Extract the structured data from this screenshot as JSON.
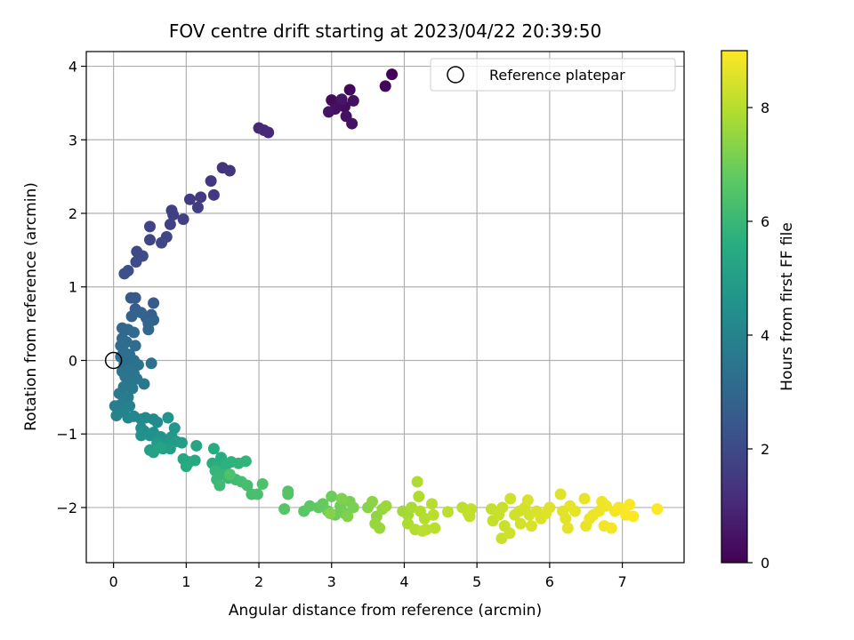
{
  "chart_data": {
    "type": "scatter",
    "title": "FOV centre drift starting at 2023/04/22 20:39:50",
    "xlabel": "Angular distance from reference (arcmin)",
    "ylabel": "Rotation from reference (arcmin)",
    "xlim": [
      -0.375,
      7.85
    ],
    "ylim": [
      -2.75,
      4.2
    ],
    "xticks": [
      0,
      1,
      2,
      3,
      4,
      5,
      6,
      7
    ],
    "yticks": [
      -2,
      -1,
      0,
      1,
      2,
      3,
      4
    ],
    "grid": true,
    "legend": {
      "placement": "top-right",
      "entries": [
        "Reference platepar"
      ]
    },
    "reference_point": {
      "x": 0,
      "y": 0,
      "label": "Reference platepar"
    },
    "colorbar": {
      "label": "Hours from first FF file",
      "min": 0,
      "max": 9,
      "ticks": [
        0,
        2,
        4,
        6,
        8
      ],
      "colormap": "viridis"
    },
    "points": [
      [
        3.83,
        3.89,
        0.05
      ],
      [
        3.74,
        3.73,
        0.12
      ],
      [
        3.25,
        3.68,
        0.18
      ],
      [
        3.0,
        3.54,
        0.22
      ],
      [
        3.1,
        3.5,
        0.26
      ],
      [
        3.18,
        3.45,
        0.3
      ],
      [
        3.3,
        3.53,
        0.34
      ],
      [
        3.05,
        3.42,
        0.38
      ],
      [
        3.2,
        3.32,
        0.42
      ],
      [
        3.28,
        3.22,
        0.46
      ],
      [
        2.96,
        3.38,
        0.5
      ],
      [
        3.14,
        3.55,
        0.54
      ],
      [
        2.0,
        3.16,
        1.0
      ],
      [
        2.07,
        3.13,
        1.04
      ],
      [
        2.13,
        3.1,
        1.08
      ],
      [
        1.5,
        2.62,
        1.3
      ],
      [
        1.6,
        2.58,
        1.35
      ],
      [
        1.34,
        2.44,
        1.42
      ],
      [
        1.38,
        2.25,
        1.48
      ],
      [
        1.2,
        2.22,
        1.52
      ],
      [
        1.05,
        2.19,
        1.56
      ],
      [
        1.16,
        2.08,
        1.6
      ],
      [
        0.8,
        2.04,
        1.64
      ],
      [
        0.82,
        1.98,
        1.68
      ],
      [
        0.96,
        1.92,
        1.72
      ],
      [
        0.78,
        1.85,
        1.76
      ],
      [
        0.5,
        1.82,
        1.8
      ],
      [
        0.73,
        1.68,
        1.85
      ],
      [
        0.5,
        1.64,
        1.9
      ],
      [
        0.66,
        1.6,
        1.94
      ],
      [
        0.32,
        1.48,
        2.0
      ],
      [
        0.4,
        1.42,
        2.05
      ],
      [
        0.31,
        1.34,
        2.1
      ],
      [
        0.2,
        1.22,
        2.15
      ],
      [
        0.15,
        1.18,
        2.2
      ],
      [
        0.24,
        0.85,
        2.5
      ],
      [
        0.3,
        0.85,
        2.55
      ],
      [
        0.55,
        0.78,
        2.6
      ],
      [
        0.3,
        0.7,
        2.65
      ],
      [
        0.52,
        0.62,
        2.7
      ],
      [
        0.45,
        0.58,
        2.75
      ],
      [
        0.55,
        0.55,
        2.8
      ],
      [
        0.25,
        0.6,
        2.85
      ],
      [
        0.38,
        0.65,
        2.9
      ],
      [
        0.48,
        0.5,
        2.95
      ],
      [
        0.48,
        0.42,
        3.0
      ],
      [
        0.12,
        0.44,
        3.02
      ],
      [
        0.2,
        0.42,
        3.05
      ],
      [
        0.28,
        0.38,
        3.08
      ],
      [
        0.12,
        0.3,
        3.1
      ],
      [
        0.18,
        0.25,
        3.12
      ],
      [
        0.1,
        0.2,
        3.15
      ],
      [
        0.3,
        0.2,
        3.18
      ],
      [
        0.14,
        0.12,
        3.2
      ],
      [
        0.22,
        0.08,
        3.22
      ],
      [
        0.1,
        0.05,
        3.25
      ],
      [
        0.2,
        0.02,
        3.28
      ],
      [
        0.28,
        0.0,
        3.3
      ],
      [
        0.15,
        -0.05,
        3.32
      ],
      [
        0.34,
        -0.06,
        3.35
      ],
      [
        0.52,
        -0.04,
        3.38
      ],
      [
        0.22,
        -0.12,
        3.4
      ],
      [
        0.12,
        -0.15,
        3.42
      ],
      [
        0.28,
        -0.18,
        3.45
      ],
      [
        0.16,
        -0.22,
        3.48
      ],
      [
        0.32,
        -0.25,
        3.5
      ],
      [
        0.2,
        -0.3,
        3.52
      ],
      [
        0.42,
        -0.32,
        3.55
      ],
      [
        0.14,
        -0.36,
        3.58
      ],
      [
        0.26,
        -0.38,
        3.6
      ],
      [
        0.08,
        -0.45,
        3.65
      ],
      [
        0.2,
        -0.5,
        3.7
      ],
      [
        0.18,
        -0.55,
        3.75
      ],
      [
        0.1,
        -0.6,
        3.8
      ],
      [
        0.02,
        -0.62,
        3.85
      ],
      [
        0.22,
        -0.62,
        3.9
      ],
      [
        0.14,
        -0.7,
        3.95
      ],
      [
        0.04,
        -0.75,
        4.0
      ],
      [
        0.2,
        -0.78,
        4.05
      ],
      [
        0.28,
        -0.76,
        4.1
      ],
      [
        0.38,
        -0.8,
        4.15
      ],
      [
        0.44,
        -0.78,
        4.2
      ],
      [
        0.55,
        -0.8,
        4.25
      ],
      [
        0.6,
        -0.84,
        4.3
      ],
      [
        0.38,
        -0.92,
        4.35
      ],
      [
        0.42,
        -0.96,
        4.4
      ],
      [
        0.55,
        -0.98,
        4.45
      ],
      [
        0.38,
        -1.02,
        4.5
      ],
      [
        0.5,
        -1.02,
        4.55
      ],
      [
        0.65,
        -1.04,
        4.6
      ],
      [
        0.75,
        -0.78,
        4.65
      ],
      [
        0.84,
        -0.92,
        4.7
      ],
      [
        0.8,
        -1.04,
        4.75
      ],
      [
        0.6,
        -1.12,
        4.8
      ],
      [
        0.72,
        -1.14,
        4.85
      ],
      [
        0.86,
        -1.1,
        4.9
      ],
      [
        0.94,
        -1.12,
        4.95
      ],
      [
        0.68,
        -1.2,
        5.0
      ],
      [
        0.78,
        -1.2,
        5.05
      ],
      [
        0.5,
        -1.22,
        5.1
      ],
      [
        0.55,
        -1.25,
        5.15
      ],
      [
        0.64,
        -1.18,
        5.2
      ],
      [
        1.14,
        -1.16,
        5.25
      ],
      [
        0.96,
        -1.34,
        5.3
      ],
      [
        1.04,
        -1.38,
        5.35
      ],
      [
        1.12,
        -1.36,
        5.4
      ],
      [
        1.0,
        -1.44,
        5.45
      ],
      [
        1.38,
        -1.2,
        5.5
      ],
      [
        1.48,
        -1.32,
        5.55
      ],
      [
        1.36,
        -1.4,
        5.6
      ],
      [
        1.45,
        -1.45,
        5.65
      ],
      [
        1.55,
        -1.42,
        5.7
      ],
      [
        1.62,
        -1.38,
        5.75
      ],
      [
        1.72,
        -1.4,
        5.8
      ],
      [
        1.82,
        -1.37,
        5.85
      ],
      [
        1.4,
        -1.5,
        5.9
      ],
      [
        1.5,
        -1.55,
        5.95
      ],
      [
        1.42,
        -1.62,
        6.0
      ],
      [
        1.58,
        -1.6,
        6.05
      ],
      [
        1.46,
        -1.7,
        6.1
      ],
      [
        1.68,
        -1.62,
        6.15
      ],
      [
        1.76,
        -1.65,
        6.2
      ],
      [
        1.84,
        -1.7,
        6.25
      ],
      [
        1.9,
        -1.82,
        6.3
      ],
      [
        1.98,
        -1.82,
        6.35
      ],
      [
        2.05,
        -1.68,
        6.4
      ],
      [
        1.6,
        -1.55,
        6.42
      ],
      [
        2.4,
        -1.78,
        6.5
      ],
      [
        2.4,
        -1.82,
        6.55
      ],
      [
        2.35,
        -2.02,
        6.6
      ],
      [
        2.62,
        -2.05,
        6.65
      ],
      [
        2.7,
        -1.98,
        6.7
      ],
      [
        2.82,
        -2.0,
        6.75
      ],
      [
        2.88,
        -1.95,
        6.8
      ],
      [
        2.95,
        -2.05,
        6.85
      ],
      [
        3.0,
        -1.85,
        6.9
      ],
      [
        3.05,
        -2.1,
        6.95
      ],
      [
        3.12,
        -1.98,
        7.0
      ],
      [
        3.18,
        -2.08,
        7.05
      ],
      [
        3.25,
        -1.92,
        7.1
      ],
      [
        3.3,
        -2.0,
        7.15
      ],
      [
        3.14,
        -1.88,
        7.2
      ],
      [
        3.22,
        -2.12,
        7.25
      ],
      [
        2.98,
        -2.08,
        7.3
      ],
      [
        3.5,
        -2.0,
        7.35
      ],
      [
        3.56,
        -1.92,
        7.4
      ],
      [
        3.62,
        -2.12,
        7.45
      ],
      [
        3.7,
        -2.02,
        7.5
      ],
      [
        3.6,
        -2.22,
        7.55
      ],
      [
        3.66,
        -2.28,
        7.6
      ],
      [
        3.75,
        -1.98,
        7.65
      ],
      [
        3.98,
        -2.05,
        7.7
      ],
      [
        4.05,
        -2.1,
        7.75
      ],
      [
        4.1,
        -2.0,
        7.8
      ],
      [
        4.05,
        -2.22,
        7.85
      ],
      [
        4.18,
        -1.65,
        7.9
      ],
      [
        4.2,
        -1.85,
        7.92
      ],
      [
        4.22,
        -2.05,
        7.94
      ],
      [
        4.28,
        -2.15,
        7.96
      ],
      [
        4.15,
        -2.3,
        7.98
      ],
      [
        4.3,
        -2.3,
        8.0
      ],
      [
        4.38,
        -1.95,
        8.02
      ],
      [
        4.4,
        -2.1,
        8.04
      ],
      [
        4.42,
        -2.28,
        8.06
      ],
      [
        4.25,
        -2.32,
        8.08
      ],
      [
        4.6,
        -2.06,
        8.1
      ],
      [
        4.8,
        -2.0,
        8.12
      ],
      [
        4.88,
        -2.08,
        8.14
      ],
      [
        4.92,
        -2.02,
        8.16
      ],
      [
        4.9,
        -2.12,
        8.18
      ],
      [
        5.2,
        -2.02,
        8.2
      ],
      [
        5.22,
        -2.18,
        8.22
      ],
      [
        5.3,
        -2.1,
        8.24
      ],
      [
        5.35,
        -2.0,
        8.26
      ],
      [
        5.38,
        -2.25,
        8.28
      ],
      [
        5.34,
        -2.42,
        8.3
      ],
      [
        5.45,
        -2.35,
        8.32
      ],
      [
        5.46,
        -1.88,
        8.34
      ],
      [
        5.52,
        -2.1,
        8.36
      ],
      [
        5.58,
        -2.05,
        8.38
      ],
      [
        5.6,
        -2.22,
        8.4
      ],
      [
        5.66,
        -2.0,
        8.42
      ],
      [
        5.72,
        -2.1,
        8.44
      ],
      [
        5.7,
        -1.9,
        8.46
      ],
      [
        5.75,
        -2.25,
        8.48
      ],
      [
        5.82,
        -2.05,
        8.5
      ],
      [
        5.88,
        -2.15,
        8.52
      ],
      [
        5.95,
        -2.08,
        8.54
      ],
      [
        6.0,
        -2.0,
        8.56
      ],
      [
        6.15,
        -1.82,
        8.58
      ],
      [
        6.18,
        -2.05,
        8.6
      ],
      [
        6.22,
        -2.15,
        8.62
      ],
      [
        6.25,
        -2.28,
        8.64
      ],
      [
        6.28,
        -1.98,
        8.66
      ],
      [
        6.35,
        -2.05,
        8.68
      ],
      [
        6.48,
        -1.88,
        8.7
      ],
      [
        6.5,
        -2.25,
        8.72
      ],
      [
        6.55,
        -2.15,
        8.74
      ],
      [
        6.6,
        -2.1,
        8.76
      ],
      [
        6.68,
        -2.05,
        8.78
      ],
      [
        6.72,
        -1.92,
        8.8
      ],
      [
        6.78,
        -1.98,
        8.82
      ],
      [
        6.75,
        -2.25,
        8.84
      ],
      [
        6.85,
        -2.28,
        8.86
      ],
      [
        6.9,
        -2.05,
        8.88
      ],
      [
        6.95,
        -2.0,
        8.9
      ],
      [
        7.02,
        -2.02,
        8.92
      ],
      [
        7.05,
        -2.1,
        8.94
      ],
      [
        7.1,
        -1.96,
        8.96
      ],
      [
        7.15,
        -2.12,
        8.98
      ],
      [
        7.48,
        -2.02,
        9.0
      ]
    ]
  },
  "colors": {
    "grid": "#b0b0b0",
    "axis": "#000000",
    "legend_border": "#cccccc"
  },
  "icons": {
    "reference_marker": "hollow-circle-icon"
  }
}
